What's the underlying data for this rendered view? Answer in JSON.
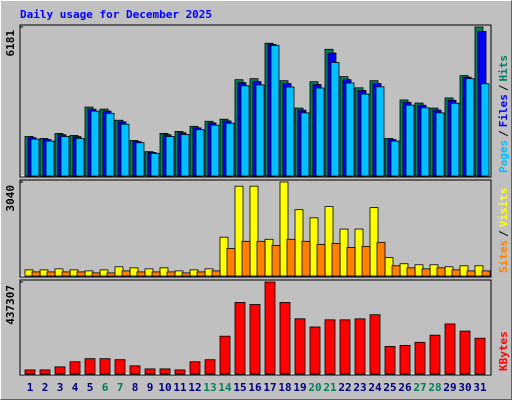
{
  "chart_data": [
    {
      "type": "bar",
      "title": "Daily usage for December 2025",
      "legend_separator": "/",
      "ylim": [
        0,
        6181
      ],
      "yticks": [
        6181
      ],
      "series": [
        {
          "name": "Hits",
          "color": "#00805c",
          "values": [
            1640,
            1556,
            1766,
            1682,
            2859,
            2775,
            2313,
            1472,
            1009,
            1766,
            1850,
            2060,
            2271,
            2355,
            3995,
            4037,
            5508,
            3953,
            2817,
            3911,
            5256,
            4121,
            3658,
            3953,
            1556,
            3154,
            3027,
            2817,
            3238,
            4163,
            6181
          ]
        },
        {
          "name": "Files",
          "color": "#0000ff",
          "values": [
            1590,
            1510,
            1713,
            1632,
            2773,
            2692,
            2244,
            1428,
            979,
            1713,
            1795,
            1998,
            2203,
            2284,
            3875,
            3916,
            5460,
            3834,
            2732,
            3794,
            5100,
            3997,
            3548,
            3834,
            1509,
            3059,
            2936,
            2732,
            3141,
            4100,
            5996
          ]
        },
        {
          "name": "Pages",
          "color": "#00c0ff",
          "values": [
            1530,
            1450,
            1640,
            1560,
            2690,
            2600,
            2150,
            1380,
            940,
            1640,
            1720,
            1920,
            2110,
            2190,
            3740,
            3780,
            5420,
            3690,
            2620,
            3650,
            4710,
            3860,
            3400,
            3700,
            1450,
            2940,
            2830,
            2620,
            3020,
            4037,
            3826
          ]
        }
      ]
    },
    {
      "type": "bar",
      "legend_separator": "/",
      "ylim": [
        0,
        3040
      ],
      "yticks": [
        3040
      ],
      "series": [
        {
          "name": "Visits",
          "color": "#ffff00",
          "values": [
            198,
            198,
            231,
            198,
            165,
            198,
            297,
            264,
            231,
            264,
            165,
            198,
            231,
            1254,
            2904,
            2904,
            1188,
            3040,
            2145,
            1881,
            2244,
            1518,
            1518,
            2211,
            594,
            396,
            363,
            363,
            297,
            330,
            330
          ]
        },
        {
          "name": "Sites",
          "color": "#ff8000",
          "values": [
            132,
            132,
            132,
            132,
            99,
            99,
            165,
            132,
            132,
            132,
            99,
            132,
            165,
            891,
            1122,
            1122,
            990,
            1188,
            1122,
            1023,
            1056,
            924,
            957,
            1089,
            330,
            264,
            231,
            264,
            198,
            165,
            165
          ]
        }
      ]
    },
    {
      "type": "bar",
      "ylim": [
        0,
        437307
      ],
      "yticks": [
        437307
      ],
      "categories": [
        "1",
        "2",
        "3",
        "4",
        "5",
        "6",
        "7",
        "8",
        "9",
        "10",
        "11",
        "12",
        "13",
        "14",
        "15",
        "16",
        "17",
        "18",
        "19",
        "20",
        "21",
        "22",
        "23",
        "24",
        "25",
        "26",
        "27",
        "28",
        "29",
        "30",
        "31"
      ],
      "category_colors": [
        "#000080",
        "#000080",
        "#000080",
        "#000080",
        "#000080",
        "#00805c",
        "#00805c",
        "#000080",
        "#000080",
        "#000080",
        "#000080",
        "#000080",
        "#00805c",
        "#00805c",
        "#000080",
        "#000080",
        "#000080",
        "#000080",
        "#000080",
        "#00805c",
        "#00805c",
        "#000080",
        "#000080",
        "#000080",
        "#000080",
        "#000080",
        "#00805c",
        "#00805c",
        "#000080",
        "#000080",
        "#000080"
      ],
      "series": [
        {
          "name": "KBytes",
          "color": "#ff0000",
          "values": [
            19436,
            19436,
            34013,
            58308,
            72885,
            72885,
            68026,
            38872,
            24295,
            24295,
            19436,
            58308,
            68026,
            179783,
            340130,
            330412,
            437307,
            340130,
            262386,
            223514,
            257527,
            257527,
            262386,
            281822,
            131193,
            136052,
            150629,
            184642,
            238091,
            204078,
            170065
          ]
        }
      ]
    }
  ]
}
